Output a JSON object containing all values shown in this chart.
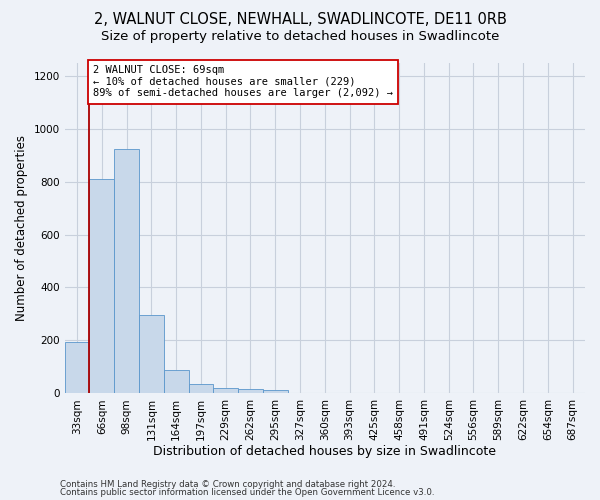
{
  "title1": "2, WALNUT CLOSE, NEWHALL, SWADLINCOTE, DE11 0RB",
  "title2": "Size of property relative to detached houses in Swadlincote",
  "xlabel": "Distribution of detached houses by size in Swadlincote",
  "ylabel": "Number of detached properties",
  "categories": [
    "33sqm",
    "66sqm",
    "98sqm",
    "131sqm",
    "164sqm",
    "197sqm",
    "229sqm",
    "262sqm",
    "295sqm",
    "327sqm",
    "360sqm",
    "393sqm",
    "425sqm",
    "458sqm",
    "491sqm",
    "524sqm",
    "556sqm",
    "589sqm",
    "622sqm",
    "654sqm",
    "687sqm"
  ],
  "values": [
    195,
    810,
    925,
    295,
    88,
    35,
    22,
    18,
    12,
    0,
    0,
    0,
    0,
    0,
    0,
    0,
    0,
    0,
    0,
    0,
    0
  ],
  "bar_color": "#c8d8ea",
  "bar_edge_color": "#5a96cc",
  "vline_x_idx": 1,
  "vline_color": "#aa0000",
  "annotation_line1": "2 WALNUT CLOSE: 69sqm",
  "annotation_line2": "← 10% of detached houses are smaller (229)",
  "annotation_line3": "89% of semi-detached houses are larger (2,092) →",
  "annotation_box_color": "#ffffff",
  "annotation_box_edge": "#cc0000",
  "ylim": [
    0,
    1250
  ],
  "yticks": [
    0,
    200,
    400,
    600,
    800,
    1000,
    1200
  ],
  "title1_fontsize": 10.5,
  "title2_fontsize": 9.5,
  "xlabel_fontsize": 9,
  "ylabel_fontsize": 8.5,
  "tick_fontsize": 7.5,
  "annot_fontsize": 7.5,
  "footer1": "Contains HM Land Registry data © Crown copyright and database right 2024.",
  "footer2": "Contains public sector information licensed under the Open Government Licence v3.0.",
  "background_color": "#eef2f8",
  "plot_background": "#eef2f8",
  "grid_color": "#c8d0dc"
}
